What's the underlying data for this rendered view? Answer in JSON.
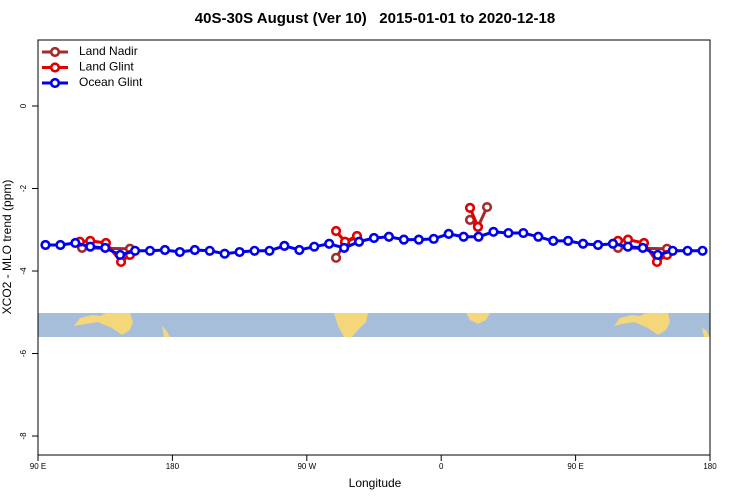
{
  "chart_data": {
    "type": "line",
    "title": "40S-30S August (Ver 10)   2015-01-01 to 2020-12-18",
    "xlabel": "Longitude",
    "ylabel": "XCO2 - MLO trend (ppm)",
    "xlim": [
      90,
      540
    ],
    "ylim": [
      -8.46,
      1.6
    ],
    "xticks": [
      {
        "value": 90,
        "label": "90 E"
      },
      180,
      {
        "value": 270,
        "label": "90 W"
      },
      {
        "value": 360,
        "label": "0"
      },
      {
        "value": 450,
        "label": "90 E"
      },
      {
        "value": 540,
        "label": "180"
      }
    ],
    "yticks": [
      0,
      -2,
      -4,
      -6,
      -8
    ],
    "legend": "top-left",
    "series": [
      {
        "name": "Land Nadir",
        "color": "#a52a2a",
        "x": [
          119.5,
          151.6,
          null,
          289.6,
          295.6,
          303.6,
          null,
          379.3,
          384.6,
          390.7,
          null,
          478.4,
          511.2
        ],
        "values": [
          -3.44,
          -3.46,
          null,
          -3.68,
          -3.32,
          -3.17,
          null,
          -2.76,
          -2.93,
          -2.45,
          null,
          -3.44,
          -3.46
        ]
      },
      {
        "name": "Land Glint",
        "color": "#e00000",
        "x": [
          118,
          125,
          135.5,
          145.6,
          151.6,
          null,
          289.6,
          295.6,
          303.6,
          null,
          379.3,
          384.6,
          null,
          478.4,
          485.1,
          495.8,
          504.5,
          511.2
        ],
        "values": [
          -3.29,
          -3.27,
          -3.32,
          -3.78,
          -3.61,
          null,
          -3.03,
          -3.29,
          -3.15,
          null,
          -2.47,
          -2.93,
          null,
          -3.27,
          -3.24,
          -3.32,
          -3.78,
          -3.61
        ]
      },
      {
        "name": "Ocean Glint",
        "color": "#0000ee",
        "x": [
          95,
          105,
          115,
          125,
          135,
          145,
          155,
          165,
          175,
          185,
          195,
          205,
          215,
          225,
          235,
          245,
          255,
          265,
          275,
          285,
          295,
          305,
          315,
          325,
          335,
          345,
          355,
          365,
          375,
          385,
          395,
          405,
          415,
          425,
          435,
          445,
          455,
          465,
          475,
          485,
          495,
          505,
          515,
          525,
          535
        ],
        "values": [
          -3.37,
          -3.37,
          -3.32,
          -3.41,
          -3.44,
          -3.61,
          -3.51,
          -3.51,
          -3.49,
          -3.54,
          -3.49,
          -3.51,
          -3.58,
          -3.54,
          -3.51,
          -3.51,
          -3.39,
          -3.49,
          -3.41,
          -3.34,
          -3.44,
          -3.29,
          -3.2,
          -3.17,
          -3.24,
          -3.24,
          -3.22,
          -3.1,
          -3.17,
          -3.17,
          -3.05,
          -3.08,
          -3.08,
          -3.17,
          -3.27,
          -3.27,
          -3.34,
          -3.37,
          -3.34,
          -3.41,
          -3.44,
          -3.61,
          -3.51,
          -3.51,
          -3.51
        ]
      }
    ]
  }
}
